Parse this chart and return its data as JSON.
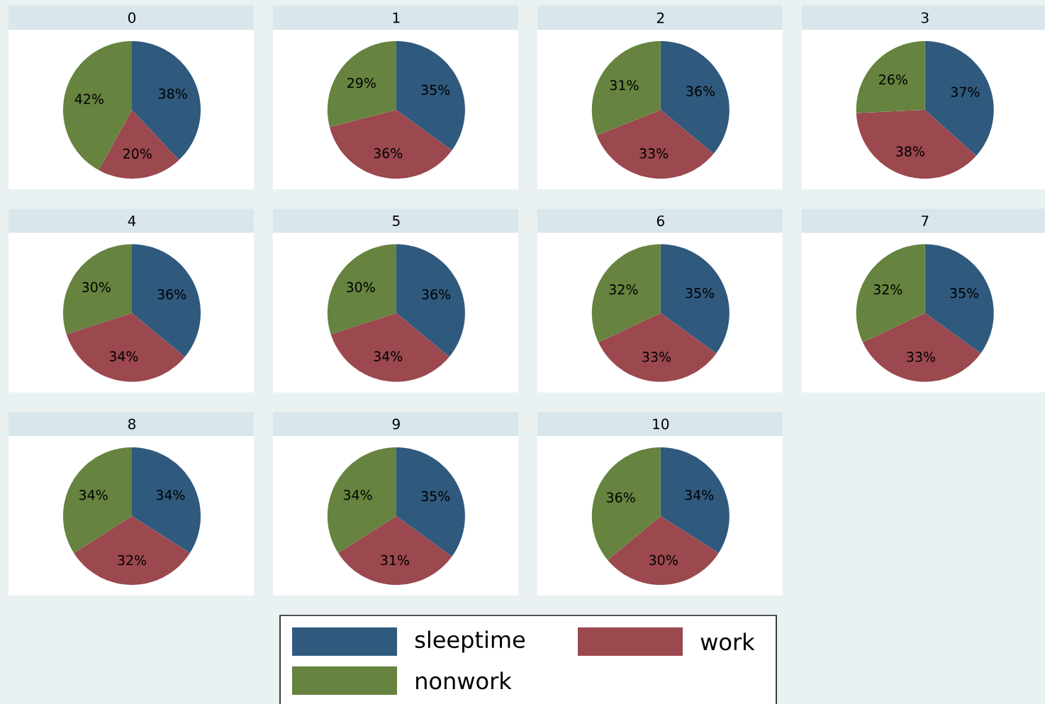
{
  "chart_data": [
    {
      "type": "pie",
      "title": "0",
      "categories": [
        "sleeptime",
        "work",
        "nonwork"
      ],
      "values": [
        38,
        20,
        42
      ],
      "value_labels": [
        "38%",
        "20%",
        "42%"
      ],
      "colors": [
        "#30597e",
        "#9b484e",
        "#66833f"
      ],
      "legend": "bottom"
    },
    {
      "type": "pie",
      "title": "1",
      "values": [
        35,
        36,
        29
      ],
      "value_labels": [
        "35%",
        "36%",
        "29%"
      ],
      "colors": [
        "#30597e",
        "#9b484e",
        "#66833f"
      ]
    },
    {
      "type": "pie",
      "title": "2",
      "values": [
        36,
        33,
        31
      ],
      "value_labels": [
        "36%",
        "33%",
        "31%"
      ],
      "colors": [
        "#30597e",
        "#9b484e",
        "#66833f"
      ]
    },
    {
      "type": "pie",
      "title": "3",
      "values": [
        37,
        38,
        26
      ],
      "value_labels": [
        "37%",
        "38%",
        "26%"
      ],
      "colors": [
        "#30597e",
        "#9b484e",
        "#66833f"
      ]
    },
    {
      "type": "pie",
      "title": "4",
      "values": [
        36,
        34,
        30
      ],
      "value_labels": [
        "36%",
        "34%",
        "30%"
      ],
      "colors": [
        "#30597e",
        "#9b484e",
        "#66833f"
      ]
    },
    {
      "type": "pie",
      "title": "5",
      "values": [
        36,
        34,
        30
      ],
      "value_labels": [
        "36%",
        "34%",
        "30%"
      ],
      "colors": [
        "#30597e",
        "#9b484e",
        "#66833f"
      ]
    },
    {
      "type": "pie",
      "title": "6",
      "values": [
        35,
        33,
        32
      ],
      "value_labels": [
        "35%",
        "33%",
        "32%"
      ],
      "colors": [
        "#30597e",
        "#9b484e",
        "#66833f"
      ]
    },
    {
      "type": "pie",
      "title": "7",
      "values": [
        35,
        33,
        32
      ],
      "value_labels": [
        "35%",
        "33%",
        "32%"
      ],
      "colors": [
        "#30597e",
        "#9b484e",
        "#66833f"
      ]
    },
    {
      "type": "pie",
      "title": "8",
      "values": [
        34,
        32,
        34
      ],
      "value_labels": [
        "34%",
        "32%",
        "34%"
      ],
      "colors": [
        "#30597e",
        "#9b484e",
        "#66833f"
      ]
    },
    {
      "type": "pie",
      "title": "9",
      "values": [
        35,
        31,
        34
      ],
      "value_labels": [
        "35%",
        "31%",
        "34%"
      ],
      "colors": [
        "#30597e",
        "#9b484e",
        "#66833f"
      ]
    },
    {
      "type": "pie",
      "title": "10",
      "values": [
        34,
        30,
        36
      ],
      "value_labels": [
        "34%",
        "30%",
        "36%"
      ],
      "colors": [
        "#30597e",
        "#9b484e",
        "#66833f"
      ]
    }
  ]
}
